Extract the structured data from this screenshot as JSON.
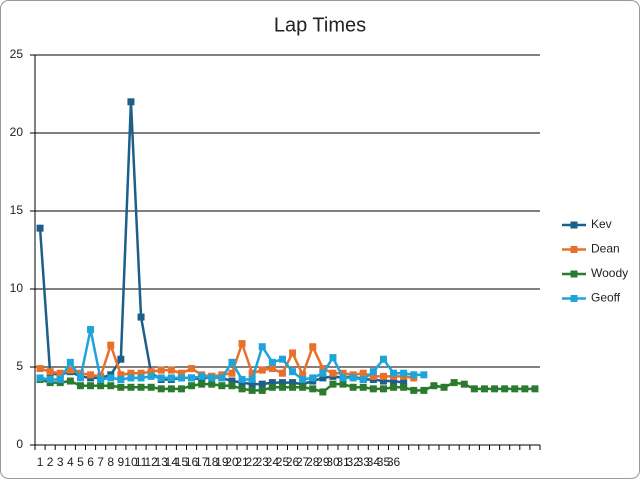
{
  "chart_data": {
    "type": "line",
    "title": "Lap Times",
    "categories": [
      "1",
      "2",
      "3",
      "4",
      "5",
      "6",
      "7",
      "8",
      "9",
      "10",
      "11",
      "12",
      "13",
      "14",
      "15",
      "16",
      "17",
      "18",
      "19",
      "20",
      "21",
      "22",
      "23",
      "24",
      "25",
      "26",
      "27",
      "28",
      "29",
      "30",
      "31",
      "32",
      "33",
      "34",
      "35",
      "36",
      null,
      null,
      null,
      null,
      null,
      null,
      null,
      null,
      null,
      null,
      null,
      null,
      null,
      null
    ],
    "series": [
      {
        "name": "Kev",
        "color": "#1d5f8a",
        "values": [
          13.9,
          4.6,
          4.5,
          4.7,
          4.4,
          4.3,
          4.3,
          4.5,
          5.5,
          22,
          8.2,
          4.6,
          4.2,
          4.2,
          4.3,
          4.3,
          4.2,
          4.4,
          4.3,
          4.1,
          4.0,
          3.9,
          3.9,
          4.0,
          4.0,
          4.0,
          3.9,
          4.1,
          4.3,
          4.4,
          4.3,
          4.4,
          4.2,
          4.2,
          4.1,
          4.1,
          4.0,
          null,
          null,
          null,
          null,
          null,
          null,
          null,
          null,
          null,
          null,
          null,
          null,
          null
        ]
      },
      {
        "name": "Dean",
        "color": "#e8702a",
        "values": [
          4.9,
          4.7,
          4.6,
          4.8,
          4.6,
          4.5,
          4.4,
          6.4,
          4.5,
          4.6,
          4.6,
          4.7,
          4.8,
          4.8,
          4.6,
          4.9,
          4.5,
          4.4,
          4.5,
          4.6,
          6.5,
          4.6,
          4.8,
          4.9,
          4.6,
          5.9,
          4.5,
          6.3,
          4.9,
          4.6,
          4.6,
          4.5,
          4.6,
          4.4,
          4.4,
          4.4,
          4.4,
          4.3,
          null,
          null,
          null,
          null,
          null,
          null,
          null,
          null,
          null,
          null,
          null,
          null
        ]
      },
      {
        "name": "Woody",
        "color": "#2b7a2f",
        "values": [
          4.2,
          4.0,
          4.0,
          4.1,
          3.8,
          3.8,
          3.8,
          3.8,
          3.7,
          3.7,
          3.7,
          3.7,
          3.6,
          3.6,
          3.6,
          3.8,
          3.9,
          3.9,
          3.8,
          3.8,
          3.6,
          3.5,
          3.5,
          3.7,
          3.7,
          3.7,
          3.7,
          3.6,
          3.4,
          3.9,
          3.9,
          3.7,
          3.7,
          3.6,
          3.6,
          3.7,
          3.7,
          3.5,
          3.5,
          3.8,
          3.7,
          4.0,
          3.9,
          3.6,
          3.6,
          3.6,
          3.6,
          3.6,
          3.6,
          3.6
        ]
      },
      {
        "name": "Geoff",
        "color": "#1ea4d8",
        "values": [
          4.3,
          4.2,
          4.2,
          5.3,
          4.3,
          7.4,
          4.2,
          4.3,
          4.2,
          4.3,
          4.3,
          4.4,
          4.3,
          4.3,
          4.3,
          4.3,
          4.4,
          4.3,
          4.3,
          5.3,
          4.2,
          4.2,
          6.3,
          5.3,
          5.5,
          4.7,
          4.2,
          4.3,
          4.6,
          5.6,
          4.3,
          4.3,
          4.2,
          4.7,
          5.5,
          4.6,
          4.6,
          4.5,
          4.5,
          null,
          null,
          null,
          null,
          null,
          null,
          null,
          null,
          null,
          null,
          null
        ]
      }
    ],
    "ylim": [
      0,
      25
    ],
    "yticks": [
      0,
      5,
      10,
      15,
      20,
      25
    ],
    "grid": true,
    "legend": "right"
  }
}
